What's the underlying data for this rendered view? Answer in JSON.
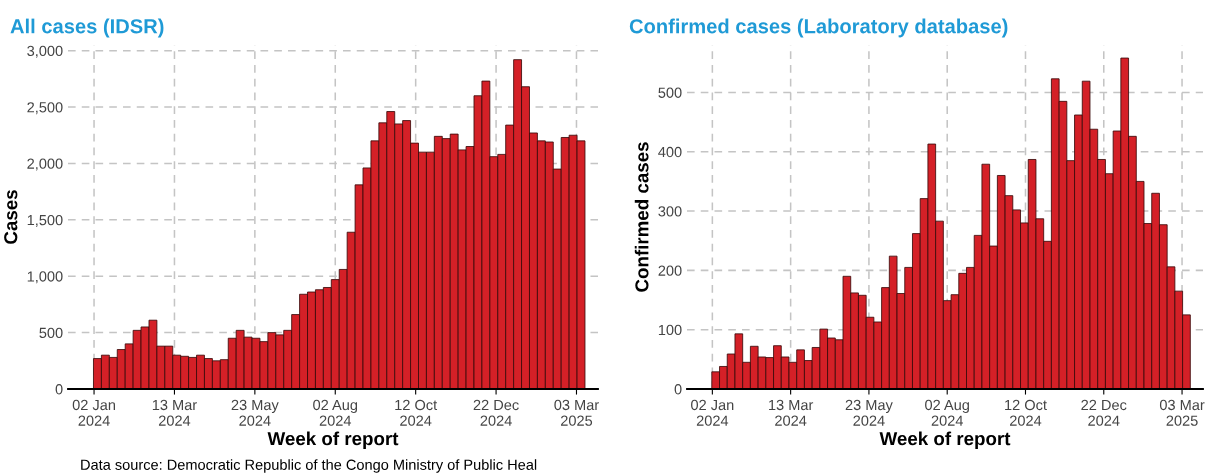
{
  "chart_data": [
    {
      "type": "bar",
      "title": "All cases (IDSR)",
      "xlabel": "Week of report",
      "ylabel": "Cases",
      "x": [
        "2024-01-05",
        "2024-01-12",
        "2024-01-19",
        "2024-01-26",
        "2024-02-02",
        "2024-02-09",
        "2024-02-16",
        "2024-02-23",
        "2024-03-01",
        "2024-03-08",
        "2024-03-15",
        "2024-03-22",
        "2024-03-29",
        "2024-04-05",
        "2024-04-12",
        "2024-04-19",
        "2024-04-26",
        "2024-05-03",
        "2024-05-10",
        "2024-05-17",
        "2024-05-24",
        "2024-05-31",
        "2024-06-07",
        "2024-06-14",
        "2024-06-21",
        "2024-06-28",
        "2024-07-05",
        "2024-07-12",
        "2024-07-19",
        "2024-07-26",
        "2024-08-02",
        "2024-08-09",
        "2024-08-16",
        "2024-08-23",
        "2024-08-30",
        "2024-09-06",
        "2024-09-13",
        "2024-09-20",
        "2024-09-27",
        "2024-10-04",
        "2024-10-11",
        "2024-10-18",
        "2024-10-25",
        "2024-11-01",
        "2024-11-08",
        "2024-11-15",
        "2024-11-22",
        "2024-11-29",
        "2024-12-06",
        "2024-12-13",
        "2024-12-20",
        "2024-12-27",
        "2025-01-03",
        "2025-01-10",
        "2025-01-17",
        "2025-01-24",
        "2025-01-31",
        "2025-02-07",
        "2025-02-14",
        "2025-02-21",
        "2025-02-28",
        "2025-03-07"
      ],
      "values": [
        270,
        300,
        280,
        350,
        400,
        520,
        550,
        610,
        380,
        380,
        300,
        290,
        280,
        300,
        270,
        250,
        260,
        450,
        520,
        460,
        450,
        420,
        500,
        480,
        520,
        660,
        840,
        860,
        880,
        900,
        970,
        1060,
        1390,
        1810,
        1960,
        2200,
        2360,
        2460,
        2350,
        2380,
        2180,
        2100,
        2100,
        2240,
        2220,
        2260,
        2120,
        2150,
        2600,
        2730,
        2060,
        2080,
        2340,
        2920,
        2680,
        2270,
        2200,
        2190,
        1950,
        2230,
        2250,
        2200
      ],
      "color": "#d42027",
      "xlim": [
        "2023-12-10",
        "2025-03-22"
      ],
      "xticks": [
        {
          "value": "2024-01-02",
          "label": "02 Jan\n2024"
        },
        {
          "value": "2024-03-13",
          "label": "13 Mar\n2024"
        },
        {
          "value": "2024-05-23",
          "label": "23 May\n2024"
        },
        {
          "value": "2024-08-02",
          "label": "02 Aug\n2024"
        },
        {
          "value": "2024-10-12",
          "label": "12 Oct\n2024"
        },
        {
          "value": "2024-12-22",
          "label": "22 Dec\n2024"
        },
        {
          "value": "2025-03-03",
          "label": "03 Mar\n2025"
        }
      ],
      "ylim": [
        0,
        3050
      ],
      "yticks": [
        0,
        500,
        {
          "value": 1000,
          "label": "1,000"
        },
        {
          "value": 1500,
          "label": "1,500"
        },
        {
          "value": 2000,
          "label": "2,000"
        },
        {
          "value": 2500,
          "label": "2,500"
        },
        {
          "value": 3000,
          "label": "3,000"
        }
      ],
      "grid": true,
      "annotations": [
        "Data source: Democratic Republic of the Congo Ministry of Public Heal"
      ]
    },
    {
      "type": "bar",
      "title": "Confirmed cases (Laboratory database)",
      "xlabel": "Week of report",
      "ylabel": "Confirmed cases",
      "x": [
        "2024-01-05",
        "2024-01-12",
        "2024-01-19",
        "2024-01-26",
        "2024-02-02",
        "2024-02-09",
        "2024-02-16",
        "2024-02-23",
        "2024-03-01",
        "2024-03-08",
        "2024-03-15",
        "2024-03-22",
        "2024-03-29",
        "2024-04-05",
        "2024-04-12",
        "2024-04-19",
        "2024-04-26",
        "2024-05-03",
        "2024-05-10",
        "2024-05-17",
        "2024-05-24",
        "2024-05-31",
        "2024-06-07",
        "2024-06-14",
        "2024-06-21",
        "2024-06-28",
        "2024-07-05",
        "2024-07-12",
        "2024-07-19",
        "2024-07-26",
        "2024-08-02",
        "2024-08-09",
        "2024-08-16",
        "2024-08-23",
        "2024-08-30",
        "2024-09-06",
        "2024-09-13",
        "2024-09-20",
        "2024-09-27",
        "2024-10-04",
        "2024-10-11",
        "2024-10-18",
        "2024-10-25",
        "2024-11-01",
        "2024-11-08",
        "2024-11-15",
        "2024-11-22",
        "2024-11-29",
        "2024-12-06",
        "2024-12-13",
        "2024-12-20",
        "2024-12-27",
        "2025-01-03",
        "2025-01-10",
        "2025-01-17",
        "2025-01-24",
        "2025-01-31",
        "2025-02-07",
        "2025-02-14",
        "2025-02-21",
        "2025-02-28",
        "2025-03-07"
      ],
      "values": [
        29,
        38,
        59,
        93,
        45,
        72,
        54,
        53,
        73,
        54,
        45,
        66,
        48,
        70,
        101,
        86,
        83,
        190,
        162,
        158,
        121,
        113,
        171,
        224,
        161,
        205,
        262,
        321,
        413,
        283,
        149,
        159,
        195,
        205,
        259,
        379,
        241,
        360,
        326,
        302,
        280,
        387,
        287,
        249,
        523,
        485,
        385,
        462,
        519,
        438,
        387,
        363,
        435,
        558,
        426,
        350,
        279,
        330,
        277,
        206,
        165,
        125
      ],
      "color": "#d42027",
      "xlim": [
        "2023-12-10",
        "2025-03-22"
      ],
      "xticks": [
        {
          "value": "2024-01-02",
          "label": "02 Jan\n2024"
        },
        {
          "value": "2024-03-13",
          "label": "13 Mar\n2024"
        },
        {
          "value": "2024-05-23",
          "label": "23 May\n2024"
        },
        {
          "value": "2024-08-02",
          "label": "02 Aug\n2024"
        },
        {
          "value": "2024-10-12",
          "label": "12 Oct\n2024"
        },
        {
          "value": "2024-12-22",
          "label": "22 Dec\n2024"
        },
        {
          "value": "2025-03-03",
          "label": "03 Mar\n2025"
        }
      ],
      "ylim": [
        0,
        580
      ],
      "yticks": [
        0,
        100,
        200,
        300,
        400,
        500
      ],
      "grid": true
    }
  ]
}
